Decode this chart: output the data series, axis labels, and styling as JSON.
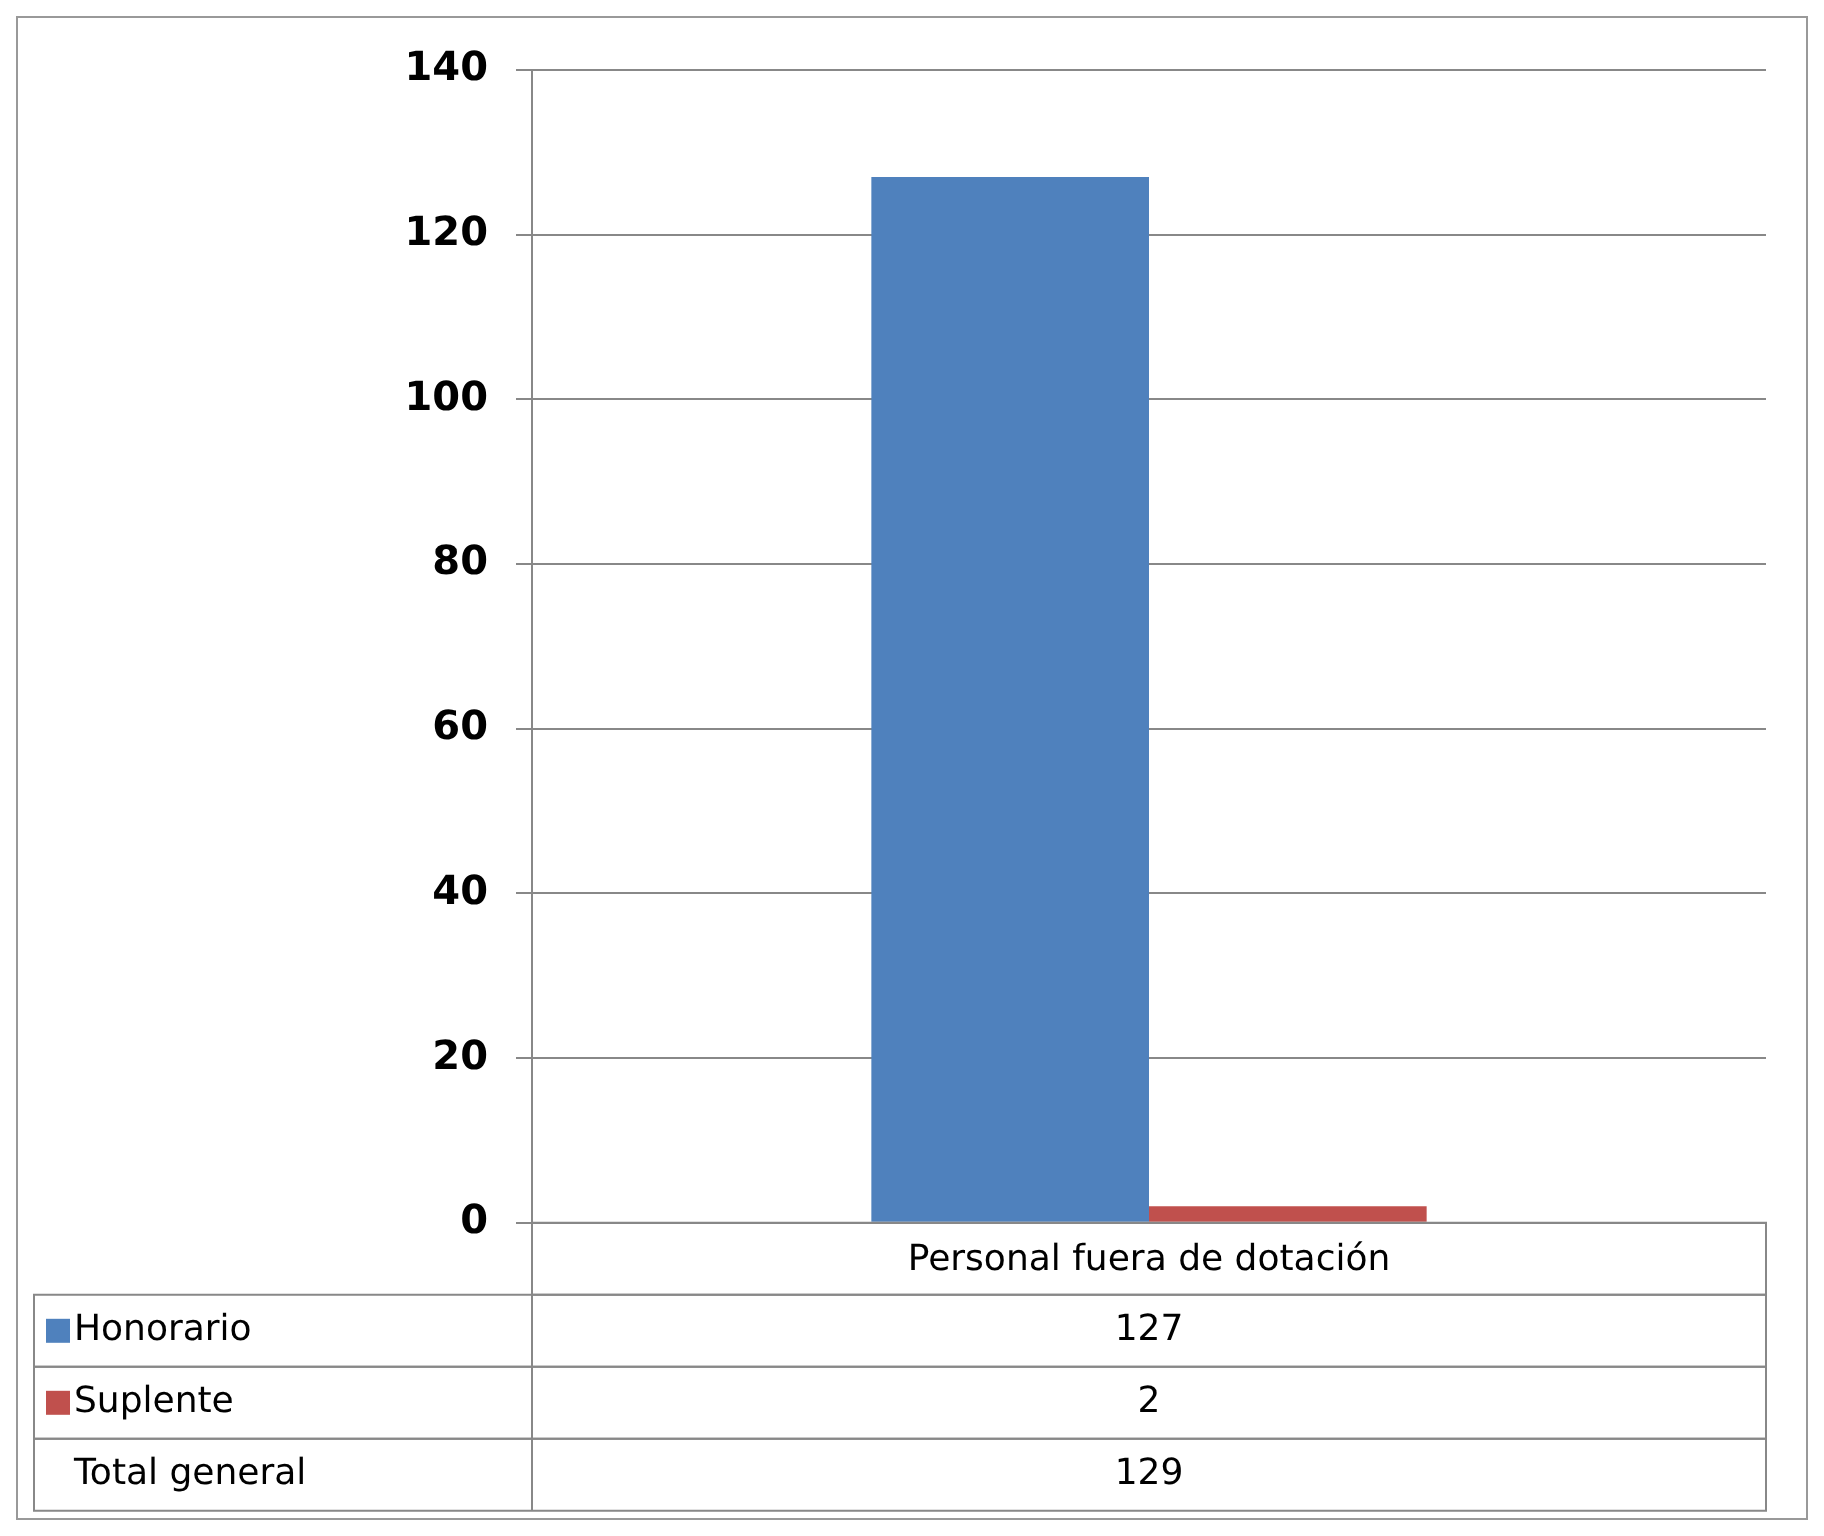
{
  "chart_data": {
    "type": "bar",
    "categories": [
      "Personal fuera de dotación"
    ],
    "series": [
      {
        "name": "Honorario",
        "color": "#4f81bd",
        "values": [
          127
        ]
      },
      {
        "name": "Suplente",
        "color": "#c0504d",
        "values": [
          2
        ]
      }
    ],
    "ylim": [
      0,
      140
    ],
    "yticks": [
      0,
      20,
      40,
      60,
      80,
      100,
      120,
      140
    ],
    "grid": "y",
    "legend": "bottom",
    "annotations": [
      "127",
      "2",
      "Total general",
      "129"
    ]
  }
}
